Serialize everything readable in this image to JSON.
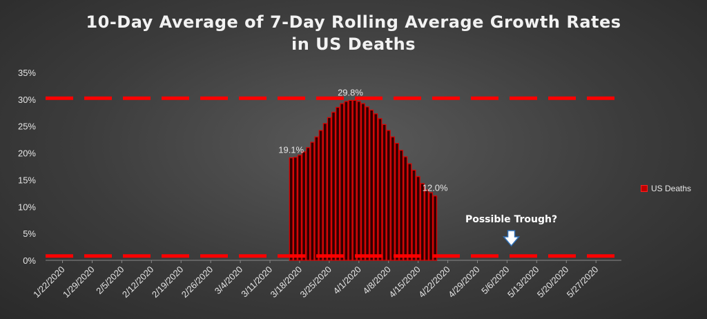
{
  "chart_data": {
    "type": "bar",
    "title_line1": "10-Day Average of 7-Day Rolling Average Growth Rates",
    "title_line2": "in US Deaths",
    "series": [
      {
        "name": "US Deaths",
        "start_date": "3/16/2020",
        "values": [
          19.1,
          19.2,
          19.6,
          20.2,
          21.0,
          22.0,
          23.0,
          24.2,
          25.5,
          26.6,
          27.6,
          28.5,
          29.2,
          29.6,
          29.8,
          29.8,
          29.6,
          29.2,
          28.6,
          28.0,
          27.3,
          26.4,
          25.3,
          24.2,
          23.0,
          21.8,
          20.5,
          19.3,
          18.0,
          16.8,
          15.6,
          14.3,
          13.1,
          12.6,
          12.0
        ]
      }
    ],
    "x_tick_labels": [
      "1/22/2020",
      "1/29/2020",
      "2/5/2020",
      "2/12/2020",
      "2/19/2020",
      "2/26/2020",
      "3/4/2020",
      "3/11/2020",
      "3/18/2020",
      "3/25/2020",
      "4/1/2020",
      "4/8/2020",
      "4/15/2020",
      "4/22/2020",
      "4/29/2020",
      "5/6/2020",
      "5/13/2020",
      "5/20/2020",
      "5/27/2020"
    ],
    "y_tick_labels": [
      "0%",
      "5%",
      "10%",
      "15%",
      "20%",
      "25%",
      "30%",
      "35%"
    ],
    "ylim": [
      0,
      35
    ],
    "xlim_dates": [
      "1/18/2020",
      "6/2/2020"
    ],
    "reference_lines": [
      30.2,
      0.8
    ],
    "data_labels": [
      {
        "text": "19.1%",
        "value": 19.1,
        "index": 0
      },
      {
        "text": "29.8%",
        "value": 29.8,
        "index": 14
      },
      {
        "text": "12.0%",
        "value": 12.0,
        "index": 34
      }
    ],
    "annotation": {
      "text": "Possible Trough?",
      "date": "5/7/2020"
    },
    "legend_label": "US Deaths",
    "legend_position": "right",
    "colors": {
      "bar_fill": "#300000",
      "bar_edge": "#e00000",
      "ref_line": "#ff0000",
      "text": "#e6e6e6",
      "annotation_text": "#ffffff",
      "arrow_fill": "#ffffff",
      "arrow_edge": "#2f6fb5"
    }
  }
}
